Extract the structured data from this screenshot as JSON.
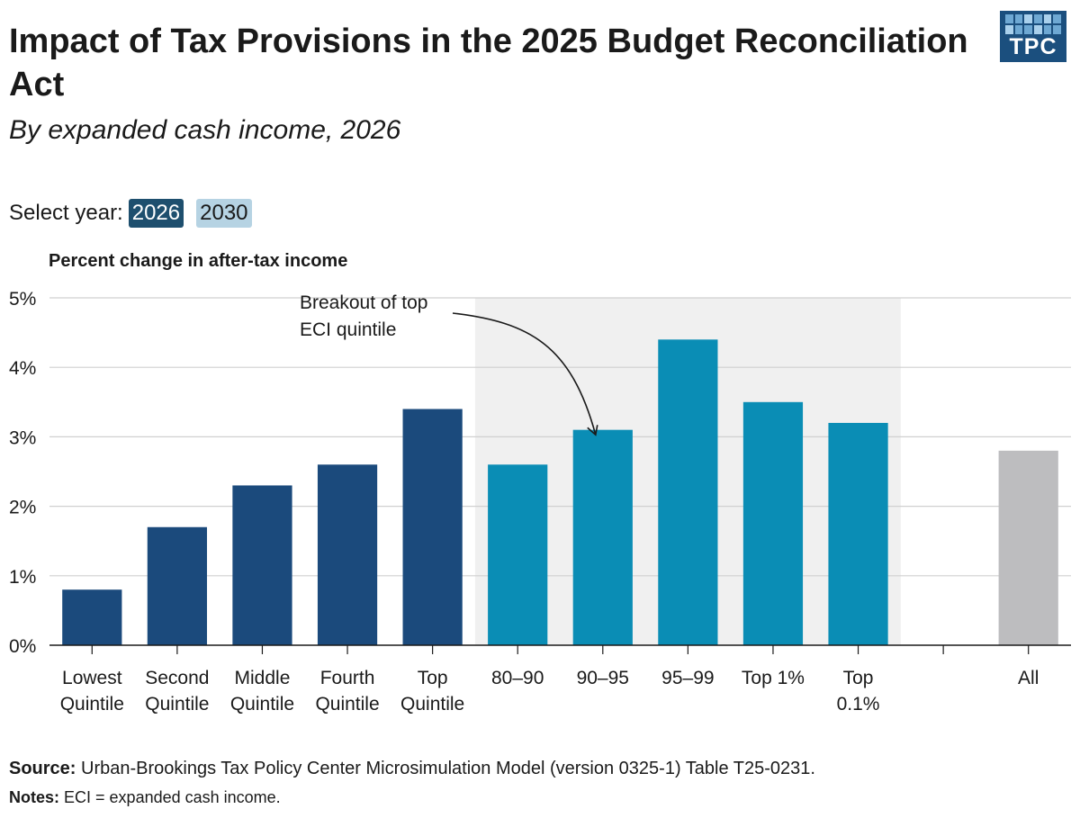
{
  "header": {
    "title": "Impact of Tax Provisions in the 2025 Budget Reconciliation Act",
    "subtitle": "By expanded cash income, 2026"
  },
  "logo": {
    "text": "TPC"
  },
  "year_selector": {
    "label": "Select year:",
    "options": [
      {
        "label": "2026",
        "selected": true
      },
      {
        "label": "2030",
        "selected": false
      }
    ]
  },
  "footer": {
    "source_label": "Source:",
    "source_text": "Urban-Brookings Tax Policy Center Microsimulation Model (version 0325-1) Table T25-0231.",
    "notes_label": "Notes:",
    "notes_text": "ECI = expanded cash income."
  },
  "chart_data": {
    "type": "bar",
    "title": "Impact of Tax Provisions in the 2025 Budget Reconciliation Act",
    "ylabel": "Percent change in after-tax income",
    "ylim": [
      0,
      5
    ],
    "yticks": [
      "0%",
      "1%",
      "2%",
      "3%",
      "4%",
      "5%"
    ],
    "grid": true,
    "categories": [
      [
        "Lowest",
        "Quintile"
      ],
      [
        "Second",
        "Quintile"
      ],
      [
        "Middle",
        "Quintile"
      ],
      [
        "Fourth",
        "Quintile"
      ],
      [
        "Top",
        "Quintile"
      ],
      [
        "80–90"
      ],
      [
        "90–95"
      ],
      [
        "95–99"
      ],
      [
        "Top 1%"
      ],
      [
        "Top",
        "0.1%"
      ],
      [],
      [
        "All"
      ]
    ],
    "values": [
      0.8,
      1.7,
      2.3,
      2.6,
      3.4,
      2.6,
      3.1,
      4.4,
      3.5,
      3.2,
      null,
      2.8
    ],
    "bar_colors": [
      "#1b4a7c",
      "#1b4a7c",
      "#1b4a7c",
      "#1b4a7c",
      "#1b4a7c",
      "#0a8db5",
      "#0a8db5",
      "#0a8db5",
      "#0a8db5",
      "#0a8db5",
      "#ffffff",
      "#bdbdbf"
    ],
    "highlight_band": {
      "from_category": "80–90",
      "to_category": "Top 0.1%",
      "color": "#f0f0f0"
    },
    "annotation": {
      "lines": [
        "Breakout of top",
        "ECI quintile"
      ],
      "points_to": "90–95"
    }
  }
}
